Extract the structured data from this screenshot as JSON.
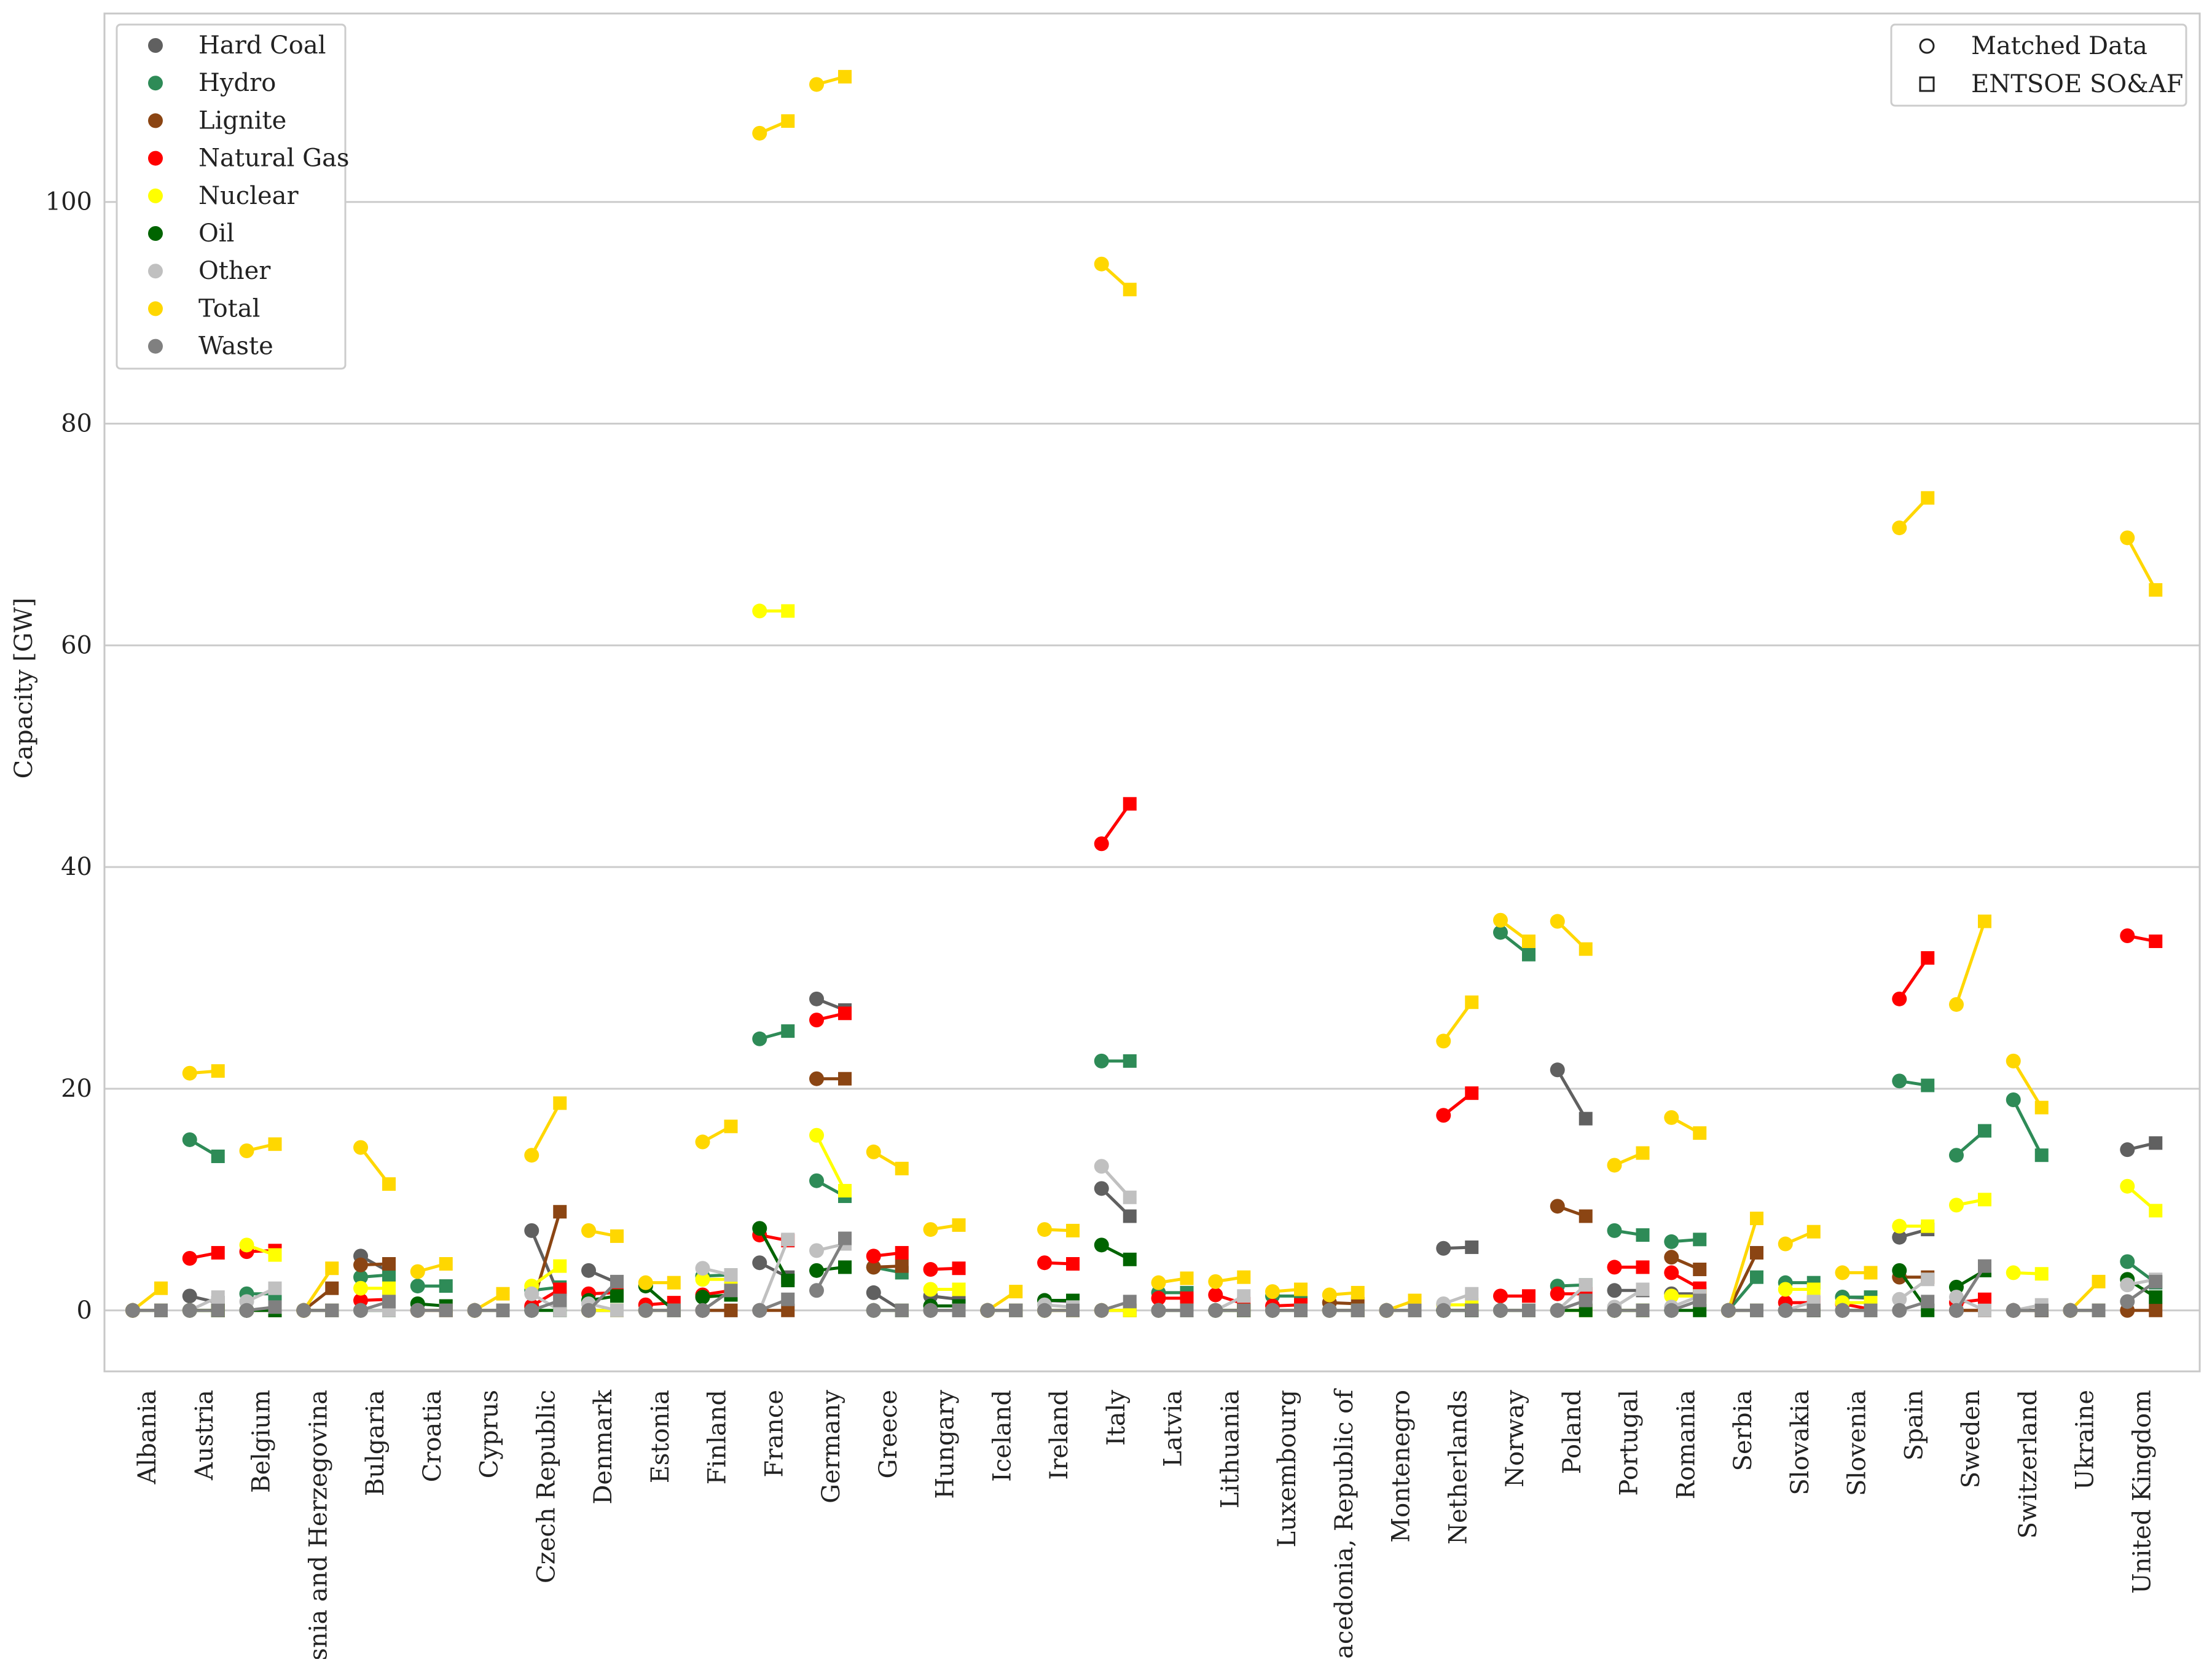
{
  "chart_data": {
    "type": "scatter",
    "ylabel": "Capacity [GW]",
    "xlabel": "",
    "ylim": [
      -5.5,
      117
    ],
    "yticks": [
      0,
      20,
      40,
      60,
      80,
      100
    ],
    "grid": true,
    "legend_fuel_placement": "top-left",
    "legend_source_placement": "top-right",
    "sources": [
      {
        "key": "matched",
        "label": "Matched Data",
        "marker": "circle"
      },
      {
        "key": "entsoe",
        "label": "ENTSOE SO&AF",
        "marker": "square"
      }
    ],
    "categories": [
      "Albania",
      "Austria",
      "Belgium",
      "Bosnia and Herzegovina",
      "Bulgaria",
      "Croatia",
      "Cyprus",
      "Czech Republic",
      "Denmark",
      "Estonia",
      "Finland",
      "France",
      "Germany",
      "Greece",
      "Hungary",
      "Iceland",
      "Ireland",
      "Italy",
      "Latvia",
      "Lithuania",
      "Luxembourg",
      "Macedonia, Republic of",
      "Montenegro",
      "Netherlands",
      "Norway",
      "Poland",
      "Portugal",
      "Romania",
      "Serbia",
      "Slovakia",
      "Slovenia",
      "Spain",
      "Sweden",
      "Switzerland",
      "Ukraine",
      "United Kingdom"
    ],
    "series": [
      {
        "name": "Hard Coal",
        "color": "#606060",
        "matched": [
          0,
          1.3,
          0,
          0,
          4.9,
          0,
          0,
          7.2,
          3.6,
          0,
          0,
          4.3,
          28.1,
          1.6,
          1.3,
          0,
          0.9,
          11,
          0,
          0,
          0,
          0,
          0,
          5.6,
          0,
          21.7,
          1.8,
          1.5,
          0,
          0,
          1.2,
          6.6,
          0,
          0,
          0,
          14.5
        ],
        "entsoe": [
          0,
          0.7,
          0,
          0,
          3.5,
          0,
          0,
          1.2,
          2.5,
          0,
          0,
          3,
          27.1,
          0,
          1,
          0,
          0.8,
          8.5,
          0,
          0,
          0,
          0,
          0,
          5.7,
          0,
          17.3,
          1.8,
          1.5,
          0,
          0,
          1.1,
          7.3,
          0,
          0,
          0,
          15.1
        ]
      },
      {
        "name": "Hydro",
        "color": "#2e8b57",
        "matched": [
          0,
          15.4,
          1.5,
          0,
          3,
          2.2,
          0,
          1.8,
          0,
          0,
          3.1,
          24.5,
          11.7,
          3.9,
          0,
          0,
          0,
          22.5,
          1.6,
          0,
          1.3,
          0,
          0,
          0,
          34.1,
          2.2,
          7.2,
          6.2,
          0,
          2.5,
          1.2,
          20.7,
          14,
          19,
          0,
          4.4
        ],
        "entsoe": [
          0,
          13.9,
          1.5,
          0,
          3.2,
          2.2,
          0,
          2.1,
          0,
          0,
          3.2,
          25.2,
          10.3,
          3.4,
          0,
          0,
          0,
          22.5,
          1.6,
          0,
          1.3,
          0,
          0,
          0,
          32.1,
          2.3,
          6.8,
          6.4,
          3,
          2.5,
          1.2,
          20.3,
          16.2,
          14,
          0,
          2.5
        ]
      },
      {
        "name": "Lignite",
        "color": "#8b4513",
        "matched": [
          0,
          0,
          0,
          0,
          4.1,
          0,
          0,
          0.3,
          0,
          0,
          0,
          0,
          20.9,
          3.9,
          0,
          0,
          0,
          0,
          0,
          0,
          0,
          0.7,
          0,
          0,
          0,
          9.4,
          0,
          4.8,
          0,
          0,
          0,
          3,
          0,
          0,
          0,
          0
        ],
        "entsoe": [
          0,
          0,
          0,
          2,
          4.2,
          0,
          0,
          8.9,
          0,
          0,
          0,
          0,
          20.9,
          4,
          0,
          0,
          0,
          0,
          0,
          0,
          0,
          0.6,
          0,
          0,
          0,
          8.5,
          0,
          3.7,
          5.2,
          0,
          0,
          3,
          0,
          0,
          0,
          0
        ]
      },
      {
        "name": "Natural Gas",
        "color": "#ff0000",
        "matched": [
          0,
          4.7,
          5.3,
          0,
          0.9,
          0,
          0,
          0.4,
          1.5,
          0.5,
          1.4,
          6.8,
          26.2,
          4.9,
          3.7,
          0,
          4.3,
          42.1,
          1.1,
          1.4,
          0.4,
          0,
          0,
          17.6,
          1.3,
          1.5,
          3.9,
          3.4,
          0,
          0.7,
          0.6,
          28.1,
          0.7,
          0,
          0,
          33.8
        ],
        "entsoe": [
          0,
          5.2,
          5.4,
          0,
          1,
          0,
          0,
          1.9,
          1.6,
          0.7,
          1.8,
          6.3,
          26.8,
          5.2,
          3.8,
          0,
          4.2,
          45.7,
          1.1,
          0.6,
          0.5,
          0,
          0,
          19.6,
          1.3,
          1.5,
          3.9,
          2,
          0,
          0.7,
          0.1,
          31.8,
          1,
          0,
          0,
          33.3
        ]
      },
      {
        "name": "Nuclear",
        "color": "#ffff00",
        "matched": [
          0,
          0,
          5.9,
          0,
          2,
          0,
          0,
          2.2,
          0,
          0,
          2.8,
          63.1,
          15.8,
          0,
          1.9,
          0,
          0,
          0,
          0,
          0,
          0,
          0,
          0,
          0.5,
          0,
          0,
          0,
          1.3,
          0,
          1.9,
          0.7,
          7.6,
          9.5,
          3.4,
          0,
          11.2
        ],
        "entsoe": [
          0,
          0,
          5,
          0,
          2,
          0,
          0,
          4,
          0,
          0,
          2.8,
          63.1,
          10.8,
          0,
          1.9,
          0,
          0,
          0,
          0,
          0,
          0,
          0,
          0,
          0.5,
          0,
          0,
          0,
          1.3,
          0,
          1.9,
          0.7,
          7.6,
          10,
          3.3,
          0,
          9
        ]
      },
      {
        "name": "Oil",
        "color": "#006400",
        "matched": [
          0,
          0,
          0,
          0,
          0,
          0.6,
          0,
          0,
          0.9,
          2.2,
          1.2,
          7.4,
          3.6,
          0,
          0.4,
          0,
          0.9,
          5.9,
          0,
          0,
          0,
          0,
          0,
          0,
          0,
          0,
          0,
          0,
          0,
          0,
          0,
          3.6,
          2.1,
          0,
          0,
          2.8
        ],
        "entsoe": [
          0,
          0,
          0,
          0,
          0,
          0.4,
          0,
          0,
          1.3,
          0,
          1.4,
          2.7,
          3.9,
          0,
          0.4,
          0,
          0.9,
          4.6,
          0,
          0,
          0,
          0,
          0,
          0,
          0,
          0,
          0,
          0,
          0,
          0,
          0,
          0,
          3.6,
          0,
          0,
          1.2
        ]
      },
      {
        "name": "Other",
        "color": "#c0c0c0",
        "matched": [
          0,
          0,
          0.8,
          0,
          0,
          0,
          0,
          1.5,
          0.6,
          0,
          3.8,
          0,
          5.4,
          0,
          0,
          0,
          0.5,
          13,
          0,
          0,
          0,
          0,
          0,
          0.6,
          0,
          0,
          0.3,
          0.3,
          0,
          0,
          0,
          1,
          1.2,
          0,
          0,
          2.3
        ],
        "entsoe": [
          0,
          1.2,
          2,
          0,
          0,
          0,
          0,
          0,
          0,
          0,
          3.2,
          6.4,
          6,
          0,
          0,
          0,
          0.3,
          10.2,
          0,
          1.3,
          0,
          0,
          0,
          1.5,
          0,
          2.3,
          1.9,
          1.3,
          0,
          0.8,
          0,
          2.8,
          0,
          0.5,
          0,
          2.8
        ]
      },
      {
        "name": "Total",
        "color": "#ffd700",
        "matched": [
          0,
          21.4,
          14.4,
          0,
          14.7,
          3.5,
          0,
          14,
          7.2,
          2.5,
          15.2,
          106.2,
          110.6,
          14.3,
          7.3,
          0,
          7.3,
          94.4,
          2.5,
          2.6,
          1.7,
          1.4,
          0,
          24.3,
          35.2,
          35.1,
          13.1,
          17.4,
          0,
          6,
          3.4,
          70.6,
          27.6,
          22.5,
          0,
          69.7
        ],
        "entsoe": [
          2,
          21.6,
          15,
          3.8,
          11.4,
          4.2,
          1.5,
          18.7,
          6.7,
          2.5,
          16.6,
          107.3,
          111.3,
          12.8,
          7.7,
          1.7,
          7.2,
          92.1,
          2.9,
          3,
          1.9,
          1.6,
          0.9,
          27.8,
          33.3,
          32.6,
          14.2,
          16,
          8.3,
          7.1,
          3.4,
          73.3,
          35.1,
          18.3,
          2.6,
          65
        ]
      },
      {
        "name": "Waste",
        "color": "#808080",
        "matched": [
          0,
          0,
          0,
          0,
          0,
          0,
          0,
          0,
          0,
          0,
          0,
          0,
          1.8,
          0,
          0,
          0,
          0,
          0,
          0,
          0,
          0,
          0,
          0,
          0,
          0,
          0,
          0,
          0,
          0,
          0,
          0,
          0,
          0,
          0,
          0,
          0.8
        ],
        "entsoe": [
          0,
          0,
          0.3,
          0,
          0.8,
          0,
          0,
          0.9,
          2.6,
          0,
          1.8,
          1,
          6.5,
          0,
          0,
          0,
          0,
          0.8,
          0,
          0,
          0,
          0,
          0,
          0,
          0,
          0.9,
          0,
          0.9,
          0,
          0,
          0,
          0.8,
          4,
          0,
          0,
          2.6
        ]
      }
    ]
  }
}
